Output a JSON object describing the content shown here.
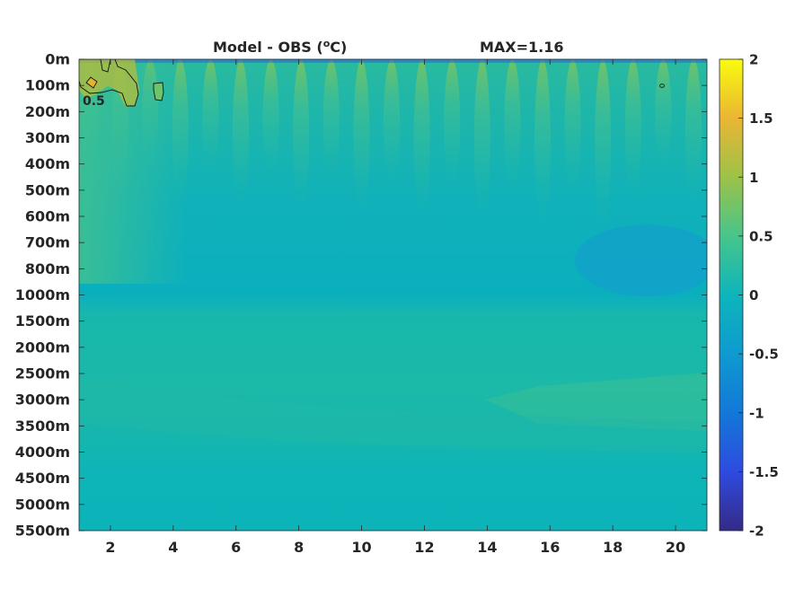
{
  "chart_data": {
    "type": "heatmap",
    "title": "Model - OBS (",
    "title_unit_sup": "o",
    "title_unit_tail": "C)",
    "max_label": "MAX=1.16",
    "xlabel": "",
    "ylabel": "",
    "xlim": [
      1,
      21
    ],
    "x_ticks": [
      2,
      4,
      6,
      8,
      10,
      12,
      14,
      16,
      18,
      20
    ],
    "x_tick_labels": [
      "2",
      "4",
      "6",
      "8",
      "10",
      "12",
      "14",
      "16",
      "18",
      "20"
    ],
    "y_tick_labels": [
      "0m",
      "100m",
      "200m",
      "300m",
      "400m",
      "500m",
      "600m",
      "700m",
      "800m",
      "1000m",
      "1500m",
      "2000m",
      "2500m",
      "3000m",
      "3500m",
      "4000m",
      "4500m",
      "5000m",
      "5500m"
    ],
    "colorbar": {
      "colormap": "parula",
      "range": [
        -2,
        2
      ],
      "ticks": [
        2,
        1.5,
        1,
        0.5,
        0,
        -0.5,
        -1,
        -1.5,
        -2
      ],
      "tick_labels": [
        "2",
        "1.5",
        "1",
        "0.5",
        "0",
        "-0.5",
        "-1",
        "-1.5",
        "-2"
      ]
    },
    "contour_level": 0.5,
    "contour_label": "0.5",
    "max_value": 1.16,
    "approx_values_by_depth": [
      {
        "depth": "0m",
        "value": 0.2
      },
      {
        "depth": "100m",
        "value": 0.45
      },
      {
        "depth": "200m",
        "value": 0.35
      },
      {
        "depth": "300m",
        "value": 0.2
      },
      {
        "depth": "400m",
        "value": 0.1
      },
      {
        "depth": "500m",
        "value": 0.05
      },
      {
        "depth": "600m",
        "value": 0.0
      },
      {
        "depth": "700m",
        "value": -0.05
      },
      {
        "depth": "800m",
        "value": -0.05
      },
      {
        "depth": "1000m",
        "value": -0.05
      },
      {
        "depth": "1500m",
        "value": 0.1
      },
      {
        "depth": "2000m",
        "value": 0.15
      },
      {
        "depth": "2500m",
        "value": 0.15
      },
      {
        "depth": "3000m",
        "value": 0.15
      },
      {
        "depth": "3500m",
        "value": 0.1
      },
      {
        "depth": "4000m",
        "value": 0.0
      },
      {
        "depth": "4500m",
        "value": 0.0
      },
      {
        "depth": "5000m",
        "value": 0.0
      },
      {
        "depth": "5500m",
        "value": 0.0
      }
    ]
  }
}
